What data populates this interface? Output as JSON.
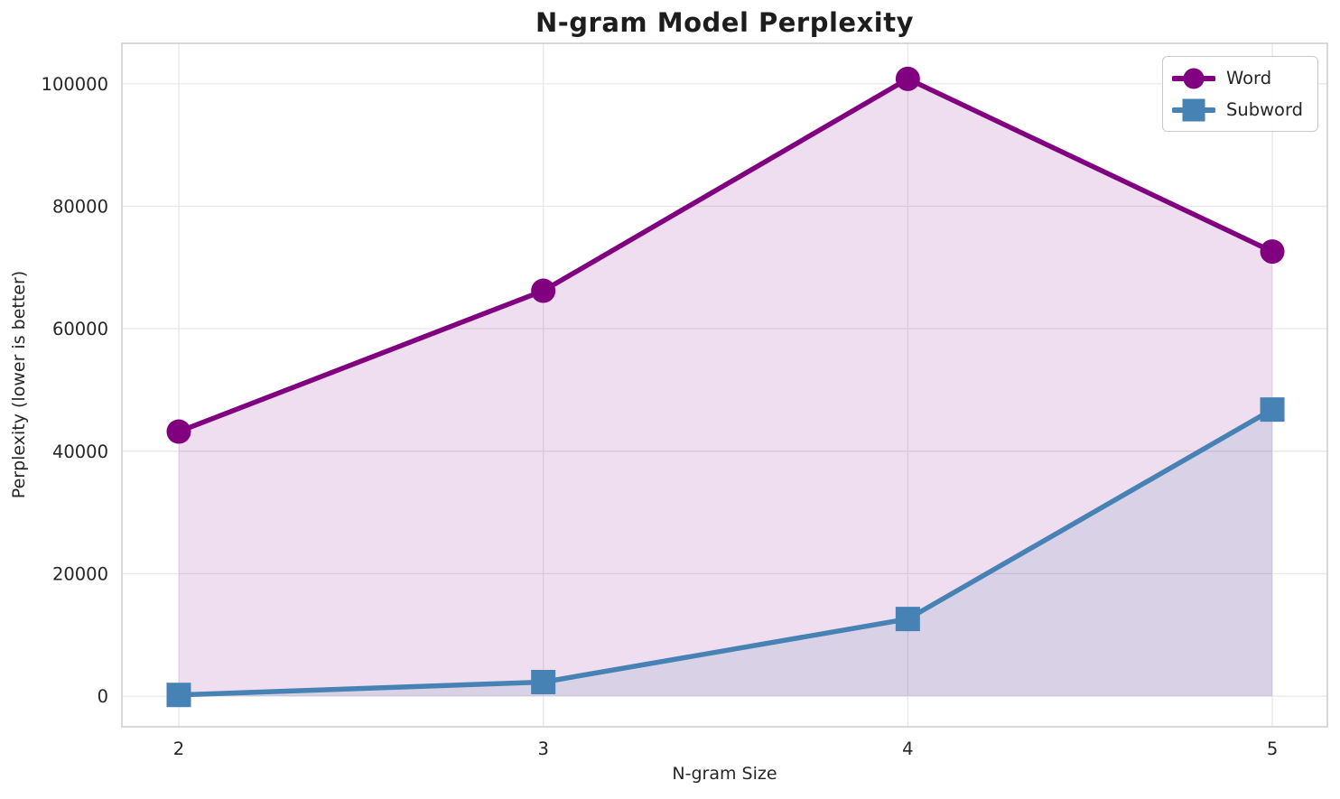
{
  "chart_data": {
    "type": "line",
    "title": "N-gram Model Perplexity",
    "xlabel": "N-gram Size",
    "ylabel": "Perplexity (lower is better)",
    "x": [
      2,
      3,
      4,
      5
    ],
    "series": [
      {
        "name": "Word",
        "color": "#800080",
        "marker": "circle",
        "values": [
          43200,
          66200,
          100800,
          72600
        ]
      },
      {
        "name": "Subword",
        "color": "#4682B4",
        "marker": "square",
        "values": [
          200,
          2300,
          12600,
          46800
        ]
      }
    ],
    "fill_to_zero": true,
    "fill_alpha": 0.13,
    "xlim": [
      1.844,
      5.151
    ],
    "ylim": [
      -5000,
      106600
    ],
    "xticks": [
      2,
      3,
      4,
      5
    ],
    "xtick_labels": [
      "2",
      "3",
      "4",
      "5"
    ],
    "yticks": [
      0,
      20000,
      40000,
      60000,
      80000,
      100000
    ],
    "ytick_labels": [
      "0",
      "20000",
      "40000",
      "60000",
      "80000",
      "100000"
    ],
    "grid": true,
    "grid_color": "#e9e9e9",
    "spine_color": "#c9c9c9",
    "text_color": "#262626",
    "legend_position": "upper right"
  }
}
